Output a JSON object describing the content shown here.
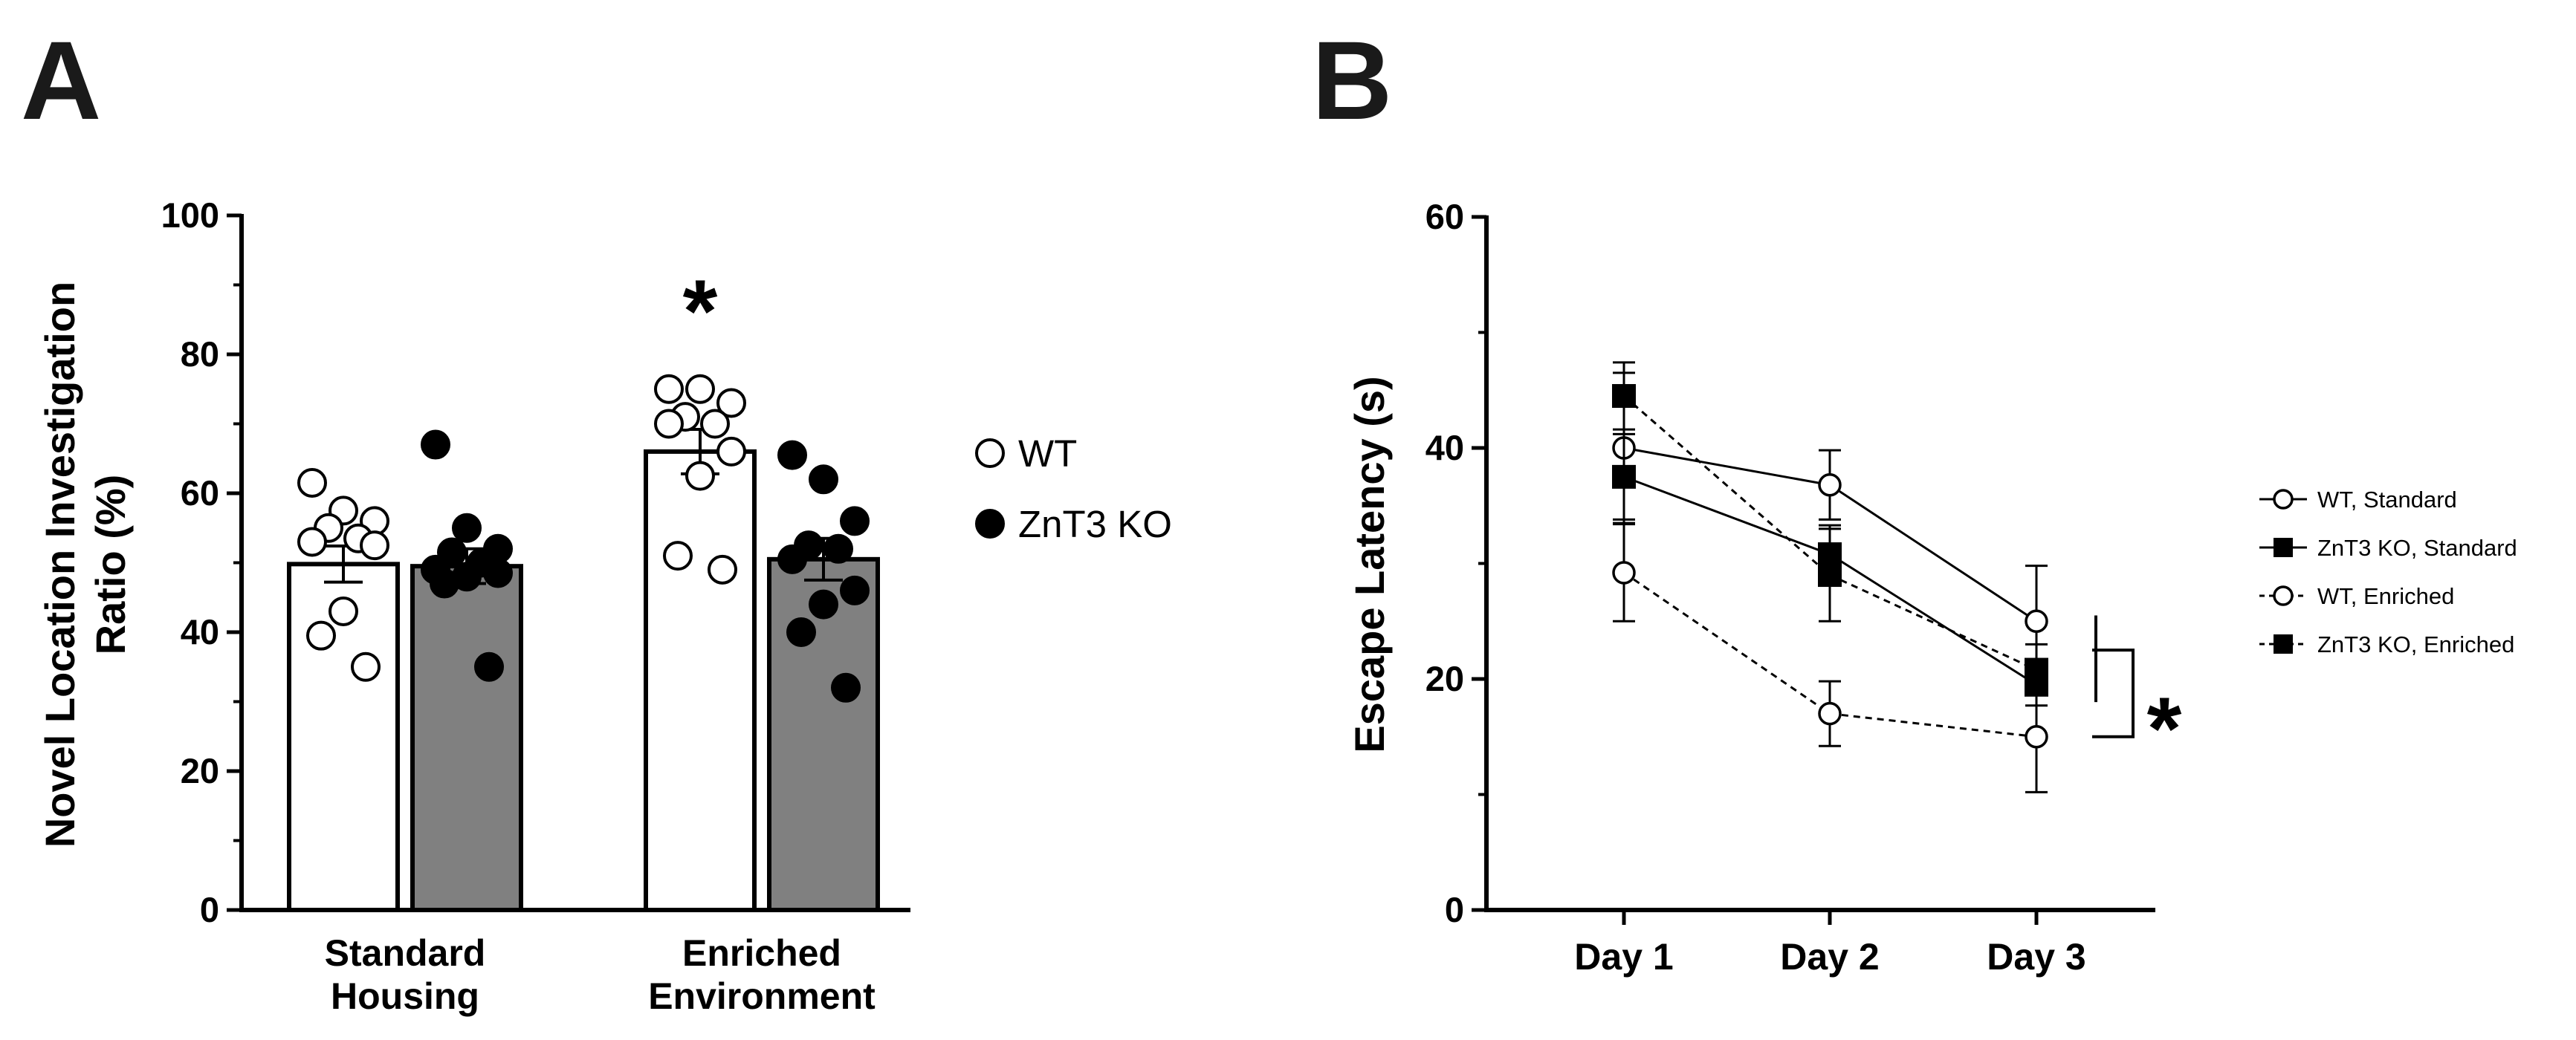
{
  "chart_data": [
    {
      "panel": "A",
      "type": "bar",
      "ylabel_lines": [
        "Novel Location Investigation",
        "Ratio (%)"
      ],
      "ylim": [
        0,
        100
      ],
      "yticks": [
        "0",
        "20",
        "40",
        "60",
        "80",
        "100"
      ],
      "categories": [
        {
          "lines": [
            "Standard",
            "Housing"
          ]
        },
        {
          "lines": [
            "Enriched",
            "Environment"
          ]
        }
      ],
      "series": [
        {
          "name": "WT",
          "fill": "#ffffff",
          "marker": "open-circle",
          "values": [
            49.8,
            66.0
          ],
          "sem": [
            2.6,
            3.2
          ],
          "points": [
            [
              61.5,
              57.5,
              56.0,
              55.0,
              53.5,
              53.0,
              52.5,
              43.0,
              39.5,
              35.0
            ],
            [
              75.0,
              75.0,
              73.0,
              71.0,
              70.0,
              70.0,
              66.0,
              62.5,
              51.0,
              49.0
            ]
          ]
        },
        {
          "name": "ZnT3 KO",
          "fill": "#808080",
          "marker": "filled-circle",
          "values": [
            49.5,
            50.5
          ],
          "sem": [
            2.5,
            3.0
          ],
          "points": [
            [
              67.0,
              55.0,
              52.0,
              51.5,
              50.0,
              49.0,
              48.5,
              48.0,
              47.0,
              35.0
            ],
            [
              65.5,
              62.0,
              56.0,
              52.5,
              52.0,
              50.5,
              46.0,
              44.0,
              40.0,
              32.0
            ]
          ]
        }
      ],
      "annotation": "*",
      "legend_position": "right"
    },
    {
      "panel": "B",
      "type": "line",
      "ylabel": "Escape Latency (s)",
      "ylim": [
        0,
        60
      ],
      "yticks": [
        "0",
        "20",
        "40",
        "60"
      ],
      "x": [
        "Day 1",
        "Day 2",
        "Day 3"
      ],
      "series": [
        {
          "name": "WT, Standard",
          "marker": "open-circle",
          "dash": "solid",
          "values": [
            40.0,
            36.8,
            25.0
          ],
          "sem": [
            6.5,
            3.0,
            4.8
          ]
        },
        {
          "name": "ZnT3 KO, Standard",
          "marker": "filled-square",
          "dash": "solid",
          "values": [
            37.5,
            30.8,
            19.5
          ],
          "sem": [
            3.7,
            2.5,
            1.8
          ]
        },
        {
          "name": "WT, Enriched",
          "marker": "open-circle",
          "dash": "dashed",
          "values": [
            29.2,
            17.0,
            15.0
          ],
          "sem": [
            4.2,
            2.8,
            4.8
          ]
        },
        {
          "name": "ZnT3 KO, Enriched",
          "marker": "filled-square",
          "dash": "dashed",
          "values": [
            44.5,
            29.0,
            20.8
          ],
          "sem": [
            2.9,
            4.0,
            2.2
          ]
        }
      ],
      "annotation": "*",
      "legend_position": "right"
    }
  ]
}
